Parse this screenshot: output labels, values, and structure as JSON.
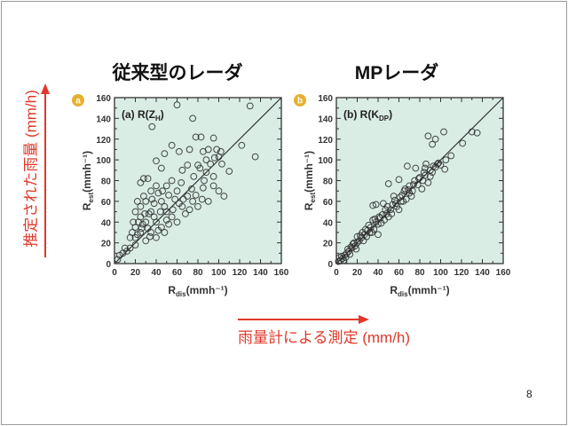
{
  "slide": {
    "title_left": "従来型のレーダ",
    "title_right": "MPレーダ",
    "y_annotation": "推定された雨量 (mm/h)",
    "x_annotation": "雨量計による測定 (mm/h)",
    "page_number": "8",
    "accent_color": "#e0382a",
    "badge_color": "#e8b030",
    "plot_bg": "#d9ede5"
  },
  "chart_data": [
    {
      "type": "scatter",
      "badge": "a",
      "panel_label": "(a) R(Z",
      "panel_sub": "H",
      "panel_close": ")",
      "xlabel": "R",
      "xlabel_sub": "dis",
      "xlabel_unit": "(mmh⁻¹)",
      "ylabel": "R",
      "ylabel_sub": "est",
      "ylabel_unit": "(mmh⁻¹)",
      "xlim": [
        0,
        160
      ],
      "ylim": [
        0,
        160
      ],
      "xticks": [
        "0",
        "20",
        "40",
        "60",
        "80",
        "100",
        "120",
        "140",
        "160"
      ],
      "yticks": [
        "0",
        "20",
        "40",
        "60",
        "80",
        "100",
        "120",
        "140",
        "160"
      ],
      "reference_line": "1:1",
      "points": [
        [
          60,
          153
        ],
        [
          130,
          152
        ],
        [
          36,
          132
        ],
        [
          75,
          140
        ],
        [
          78,
          122
        ],
        [
          83,
          122
        ],
        [
          95,
          121
        ],
        [
          122,
          114
        ],
        [
          135,
          103
        ],
        [
          55,
          114
        ],
        [
          48,
          106
        ],
        [
          62,
          108
        ],
        [
          40,
          99
        ],
        [
          72,
          110
        ],
        [
          85,
          108
        ],
        [
          90,
          110
        ],
        [
          98,
          110
        ],
        [
          100,
          103
        ],
        [
          103,
          96
        ],
        [
          110,
          89
        ],
        [
          28,
          82
        ],
        [
          32,
          82
        ],
        [
          25,
          78
        ],
        [
          45,
          92
        ],
        [
          65,
          90
        ],
        [
          70,
          95
        ],
        [
          80,
          95
        ],
        [
          88,
          88
        ],
        [
          95,
          84
        ],
        [
          105,
          65
        ],
        [
          100,
          70
        ],
        [
          55,
          80
        ],
        [
          50,
          75
        ],
        [
          40,
          75
        ],
        [
          35,
          70
        ],
        [
          60,
          70
        ],
        [
          85,
          73
        ],
        [
          90,
          60
        ],
        [
          75,
          60
        ],
        [
          45,
          60
        ],
        [
          30,
          60
        ],
        [
          25,
          55
        ],
        [
          20,
          50
        ],
        [
          35,
          50
        ],
        [
          50,
          50
        ],
        [
          65,
          55
        ],
        [
          80,
          55
        ],
        [
          55,
          45
        ],
        [
          40,
          40
        ],
        [
          30,
          40
        ],
        [
          20,
          35
        ],
        [
          25,
          30
        ],
        [
          35,
          30
        ],
        [
          45,
          35
        ],
        [
          60,
          40
        ],
        [
          15,
          25
        ],
        [
          20,
          25
        ],
        [
          30,
          22
        ],
        [
          40,
          25
        ],
        [
          10,
          15
        ],
        [
          15,
          15
        ],
        [
          20,
          18
        ],
        [
          5,
          8
        ],
        [
          8,
          10
        ],
        [
          12,
          12
        ],
        [
          3,
          4
        ],
        [
          25,
          45
        ],
        [
          33,
          48
        ],
        [
          48,
          55
        ],
        [
          70,
          65
        ],
        [
          95,
          75
        ],
        [
          58,
          62
        ],
        [
          42,
          68
        ],
        [
          28,
          65
        ],
        [
          38,
          58
        ],
        [
          52,
          38
        ],
        [
          18,
          40
        ],
        [
          22,
          60
        ],
        [
          68,
          48
        ],
        [
          74,
          72
        ],
        [
          86,
          80
        ],
        [
          92,
          96
        ],
        [
          27,
          38
        ],
        [
          32,
          34
        ],
        [
          38,
          45
        ],
        [
          44,
          50
        ],
        [
          50,
          42
        ],
        [
          56,
          52
        ],
        [
          62,
          58
        ],
        [
          66,
          62
        ],
        [
          72,
          52
        ],
        [
          78,
          66
        ],
        [
          84,
          62
        ],
        [
          22,
          28
        ],
        [
          26,
          34
        ],
        [
          34,
          26
        ],
        [
          42,
          32
        ],
        [
          48,
          30
        ],
        [
          17,
          30
        ],
        [
          23,
          40
        ],
        [
          29,
          48
        ],
        [
          36,
          62
        ],
        [
          46,
          70
        ],
        [
          52,
          66
        ],
        [
          64,
          78
        ],
        [
          76,
          84
        ],
        [
          82,
          92
        ],
        [
          88,
          100
        ],
        [
          96,
          102
        ],
        [
          102,
          108
        ]
      ]
    },
    {
      "type": "scatter",
      "badge": "b",
      "panel_label": "(b) R(K",
      "panel_sub": "DP",
      "panel_close": ")",
      "xlabel": "R",
      "xlabel_sub": "dis",
      "xlabel_unit": "(mmh⁻¹)",
      "ylabel": "R",
      "ylabel_sub": "est",
      "ylabel_unit": "(mmh⁻¹)",
      "xlim": [
        0,
        160
      ],
      "ylim": [
        0,
        160
      ],
      "xticks": [
        "0",
        "20",
        "40",
        "60",
        "80",
        "100",
        "120",
        "140",
        "160"
      ],
      "yticks": [
        "0",
        "20",
        "40",
        "60",
        "80",
        "100",
        "120",
        "140",
        "160"
      ],
      "reference_line": "1:1",
      "points": [
        [
          88,
          123
        ],
        [
          103,
          127
        ],
        [
          92,
          115
        ],
        [
          95,
          120
        ],
        [
          130,
          127
        ],
        [
          135,
          126
        ],
        [
          121,
          116
        ],
        [
          110,
          104
        ],
        [
          105,
          100
        ],
        [
          104,
          91
        ],
        [
          68,
          94
        ],
        [
          76,
          92
        ],
        [
          85,
          92
        ],
        [
          50,
          77
        ],
        [
          60,
          81
        ],
        [
          35,
          56
        ],
        [
          38,
          57
        ],
        [
          45,
          58
        ],
        [
          55,
          65
        ],
        [
          65,
          70
        ],
        [
          70,
          75
        ],
        [
          75,
          80
        ],
        [
          80,
          83
        ],
        [
          85,
          85
        ],
        [
          90,
          90
        ],
        [
          95,
          93
        ],
        [
          98,
          97
        ],
        [
          100,
          95
        ],
        [
          88,
          78
        ],
        [
          82,
          72
        ],
        [
          72,
          65
        ],
        [
          62,
          60
        ],
        [
          52,
          52
        ],
        [
          48,
          48
        ],
        [
          42,
          44
        ],
        [
          38,
          40
        ],
        [
          33,
          35
        ],
        [
          30,
          32
        ],
        [
          27,
          28
        ],
        [
          24,
          25
        ],
        [
          22,
          22
        ],
        [
          20,
          20
        ],
        [
          18,
          17
        ],
        [
          15,
          15
        ],
        [
          12,
          12
        ],
        [
          10,
          10
        ],
        [
          8,
          8
        ],
        [
          6,
          5
        ],
        [
          4,
          3
        ],
        [
          2,
          2
        ],
        [
          5,
          7
        ],
        [
          9,
          6
        ],
        [
          14,
          16
        ],
        [
          17,
          20
        ],
        [
          25,
          30
        ],
        [
          28,
          33
        ],
        [
          32,
          30
        ],
        [
          36,
          33
        ],
        [
          40,
          28
        ],
        [
          44,
          47
        ],
        [
          46,
          42
        ],
        [
          54,
          57
        ],
        [
          58,
          55
        ],
        [
          63,
          66
        ],
        [
          67,
          62
        ],
        [
          73,
          70
        ],
        [
          78,
          76
        ],
        [
          83,
          80
        ],
        [
          92,
          88
        ],
        [
          97,
          96
        ],
        [
          20,
          26
        ],
        [
          26,
          22
        ],
        [
          35,
          42
        ],
        [
          40,
          38
        ],
        [
          50,
          45
        ],
        [
          56,
          61
        ],
        [
          60,
          52
        ],
        [
          66,
          72
        ],
        [
          70,
          68
        ],
        [
          86,
          96
        ],
        [
          90,
          84
        ],
        [
          3,
          6
        ],
        [
          7,
          3
        ],
        [
          11,
          14
        ],
        [
          13,
          9
        ],
        [
          16,
          19
        ],
        [
          19,
          14
        ],
        [
          23,
          27
        ],
        [
          29,
          26
        ],
        [
          31,
          37
        ],
        [
          34,
          30
        ],
        [
          37,
          43
        ],
        [
          41,
          45
        ],
        [
          43,
          39
        ],
        [
          47,
          52
        ],
        [
          49,
          55
        ],
        [
          53,
          48
        ],
        [
          57,
          58
        ],
        [
          61,
          64
        ],
        [
          64,
          60
        ],
        [
          69,
          71
        ],
        [
          74,
          76
        ],
        [
          79,
          82
        ],
        [
          84,
          88
        ],
        [
          93,
          94
        ]
      ]
    }
  ]
}
